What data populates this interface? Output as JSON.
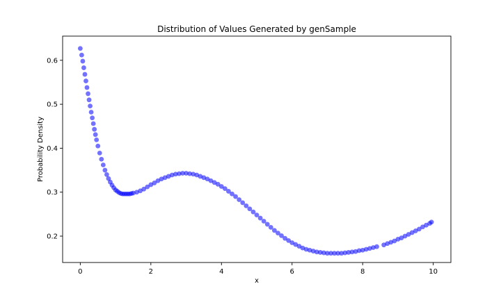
{
  "chart_data": {
    "type": "scatter",
    "title": "Distribution of Values Generated by genSample",
    "xlabel": "x",
    "ylabel": "Probability Density",
    "xlim": [
      -0.5,
      10.5
    ],
    "ylim": [
      0.14,
      0.655
    ],
    "xticks": [
      0,
      2,
      4,
      6,
      8,
      10
    ],
    "yticks": [
      0.2,
      0.3,
      0.4,
      0.5,
      0.6
    ],
    "xtick_labels": [
      "0",
      "2",
      "4",
      "6",
      "8",
      "10"
    ],
    "ytick_labels": [
      "0.2",
      "0.3",
      "0.4",
      "0.5",
      "0.6"
    ],
    "grid": false,
    "point_color": "#0000ff",
    "series": [
      {
        "x": [
          0.0,
          0.04,
          0.07,
          0.1,
          0.13,
          0.16,
          0.19,
          0.22,
          0.25,
          0.28,
          0.31,
          0.34,
          0.37,
          0.4,
          0.43,
          0.46,
          0.5,
          0.55,
          0.6,
          0.65,
          0.7,
          0.75,
          0.8,
          0.85,
          0.9,
          0.95,
          1.0,
          1.05,
          1.1,
          1.15,
          1.2,
          1.25,
          1.3,
          1.35,
          1.4,
          1.45,
          1.5,
          1.6,
          1.7,
          1.8,
          1.9,
          2.0,
          2.1,
          2.2,
          2.3,
          2.4,
          2.5,
          2.6,
          2.7,
          2.8,
          2.9,
          3.0,
          3.1,
          3.2,
          3.3,
          3.4,
          3.5,
          3.6,
          3.7,
          3.8,
          3.9,
          4.0,
          4.1,
          4.2,
          4.3,
          4.4,
          4.5,
          4.6,
          4.7,
          4.8,
          4.9,
          5.0,
          5.1,
          5.2,
          5.3,
          5.4,
          5.5,
          5.6,
          5.7,
          5.8,
          5.9,
          6.0,
          6.1,
          6.2,
          6.3,
          6.4,
          6.5,
          6.6,
          6.7,
          6.8,
          6.9,
          7.0,
          7.1,
          7.2,
          7.3,
          7.4,
          7.5,
          7.6,
          7.7,
          7.8,
          7.9,
          8.0,
          8.1,
          8.2,
          8.3,
          8.4,
          8.6,
          8.7,
          8.8,
          8.9,
          9.0,
          9.1,
          9.2,
          9.3,
          9.4,
          9.5,
          9.6,
          9.7,
          9.8,
          9.9,
          9.95
        ],
        "y": [
          0.627,
          0.612,
          0.598,
          0.583,
          0.568,
          0.553,
          0.538,
          0.524,
          0.51,
          0.496,
          0.482,
          0.469,
          0.456,
          0.443,
          0.431,
          0.419,
          0.405,
          0.389,
          0.375,
          0.362,
          0.35,
          0.34,
          0.331,
          0.323,
          0.316,
          0.31,
          0.305,
          0.302,
          0.299,
          0.297,
          0.296,
          0.296,
          0.296,
          0.296,
          0.296,
          0.297,
          0.298,
          0.3,
          0.303,
          0.307,
          0.312,
          0.317,
          0.321,
          0.326,
          0.33,
          0.333,
          0.336,
          0.339,
          0.341,
          0.342,
          0.343,
          0.343,
          0.342,
          0.341,
          0.339,
          0.336,
          0.333,
          0.33,
          0.326,
          0.322,
          0.318,
          0.313,
          0.308,
          0.302,
          0.296,
          0.29,
          0.283,
          0.276,
          0.269,
          0.262,
          0.255,
          0.248,
          0.241,
          0.234,
          0.227,
          0.22,
          0.213,
          0.207,
          0.201,
          0.195,
          0.19,
          0.185,
          0.181,
          0.177,
          0.173,
          0.17,
          0.168,
          0.166,
          0.164,
          0.163,
          0.162,
          0.161,
          0.161,
          0.161,
          0.161,
          0.161,
          0.162,
          0.163,
          0.164,
          0.165,
          0.167,
          0.168,
          0.17,
          0.172,
          0.174,
          0.176,
          0.18,
          0.183,
          0.186,
          0.189,
          0.193,
          0.196,
          0.2,
          0.204,
          0.208,
          0.212,
          0.216,
          0.221,
          0.225,
          0.229,
          0.232
        ]
      }
    ]
  }
}
